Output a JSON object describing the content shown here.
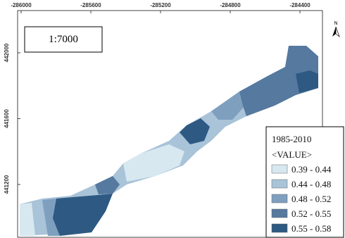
{
  "map": {
    "scale": "1:7000",
    "north": "N",
    "xticks": [
      -286000,
      -285600,
      -285200,
      -284800,
      -284400
    ],
    "yticks": [
      442000,
      441600,
      441200
    ],
    "legend": {
      "title": "1985-2010",
      "field": "<VALUE>",
      "classes": [
        {
          "label": "0.39 - 0.44",
          "color": "#d8e8f0"
        },
        {
          "label": "0.44 - 0.48",
          "color": "#a9c3d8"
        },
        {
          "label": "0.48 - 0.52",
          "color": "#7f9fbf"
        },
        {
          "label": "0.52 - 0.55",
          "color": "#55799f"
        },
        {
          "label": "0.55 - 0.58",
          "color": "#2e5982"
        }
      ]
    }
  }
}
